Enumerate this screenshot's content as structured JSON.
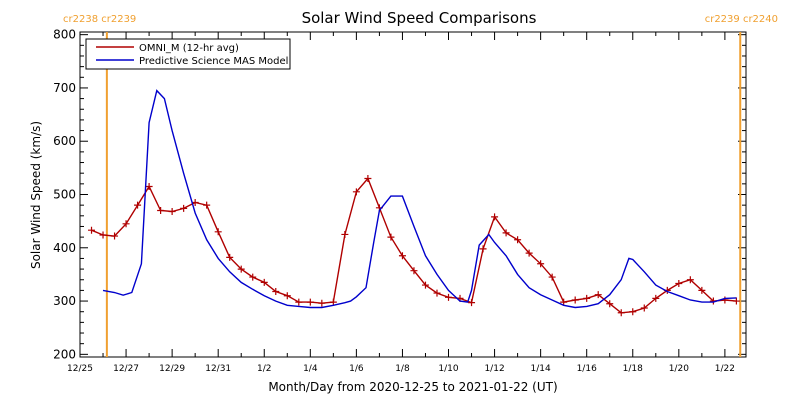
{
  "chart_data": {
    "type": "line",
    "title": "Solar Wind Speed Comparisons",
    "xlabel": "Month/Day from 2020-12-25 to 2021-01-22 (UT)",
    "ylabel": "Solar Wind Speed (km/s)",
    "xlim": [
      "2020-12-25",
      "2021-01-22T22:00"
    ],
    "ylim": [
      195,
      805
    ],
    "yticks": [
      200,
      300,
      400,
      500,
      600,
      700,
      800
    ],
    "xtick_labels": [
      "12/25",
      "12/27",
      "12/29",
      "12/31",
      "1/2",
      "1/4",
      "1/6",
      "1/8",
      "1/10",
      "1/12",
      "1/14",
      "1/16",
      "1/18",
      "1/20",
      "1/22"
    ],
    "xtick_dates": [
      "2020-12-25",
      "2020-12-27",
      "2020-12-29",
      "2020-12-31",
      "2021-01-02",
      "2021-01-04",
      "2021-01-06",
      "2021-01-08",
      "2021-01-10",
      "2021-01-12",
      "2021-01-14",
      "2021-01-16",
      "2021-01-18",
      "2021-01-20",
      "2021-01-22"
    ],
    "legend_position": "top-left",
    "carrington_lines": [
      {
        "date": "2020-12-26T04:00",
        "label": "cr2238 cr2239",
        "label_side": "left"
      },
      {
        "date": "2021-01-22T16:00",
        "label": "cr2239 cr2240",
        "label_side": "right"
      }
    ],
    "series": [
      {
        "name": "OMNI_M (12-hr avg)",
        "color": "#b00000",
        "markers": true,
        "x": [
          "2020-12-25T12:00",
          "2020-12-26T00:00",
          "2020-12-26T12:00",
          "2020-12-27T00:00",
          "2020-12-27T12:00",
          "2020-12-28T00:00",
          "2020-12-28T12:00",
          "2020-12-29T00:00",
          "2020-12-29T12:00",
          "2020-12-30T00:00",
          "2020-12-30T12:00",
          "2020-12-31T00:00",
          "2020-12-31T12:00",
          "2021-01-01T00:00",
          "2021-01-01T12:00",
          "2021-01-02T00:00",
          "2021-01-02T12:00",
          "2021-01-03T00:00",
          "2021-01-03T12:00",
          "2021-01-04T00:00",
          "2021-01-04T12:00",
          "2021-01-05T00:00",
          "2021-01-05T12:00",
          "2021-01-06T00:00",
          "2021-01-06T12:00",
          "2021-01-07T00:00",
          "2021-01-07T12:00",
          "2021-01-08T00:00",
          "2021-01-08T12:00",
          "2021-01-09T00:00",
          "2021-01-09T12:00",
          "2021-01-10T00:00",
          "2021-01-10T12:00",
          "2021-01-11T00:00",
          "2021-01-11T12:00",
          "2021-01-12T00:00",
          "2021-01-12T12:00",
          "2021-01-13T00:00",
          "2021-01-13T12:00",
          "2021-01-14T00:00",
          "2021-01-14T12:00",
          "2021-01-15T00:00",
          "2021-01-15T12:00",
          "2021-01-16T00:00",
          "2021-01-16T12:00",
          "2021-01-17T00:00",
          "2021-01-17T12:00",
          "2021-01-18T00:00",
          "2021-01-18T12:00",
          "2021-01-19T00:00",
          "2021-01-19T12:00",
          "2021-01-20T00:00",
          "2021-01-20T12:00",
          "2021-01-21T00:00",
          "2021-01-21T12:00",
          "2021-01-22T00:00",
          "2021-01-22T12:00"
        ],
        "y": [
          433,
          424,
          422,
          445,
          480,
          515,
          470,
          468,
          474,
          485,
          480,
          430,
          382,
          360,
          345,
          335,
          318,
          310,
          298,
          298,
          296,
          298,
          425,
          505,
          530,
          475,
          420,
          385,
          357,
          330,
          315,
          307,
          305,
          297,
          398,
          458,
          428,
          415,
          390,
          370,
          345,
          298,
          302,
          305,
          312,
          295,
          278,
          280,
          287,
          305,
          320,
          333,
          340,
          320,
          300,
          302,
          300
        ]
      },
      {
        "name": "Predictive Science MAS Model",
        "color": "#0000cc",
        "markers": false,
        "x": [
          "2020-12-26T00:00",
          "2020-12-26T12:00",
          "2020-12-26T21:00",
          "2020-12-27T06:00",
          "2020-12-27T16:00",
          "2020-12-28T00:00",
          "2020-12-28T08:00",
          "2020-12-28T16:00",
          "2020-12-29T00:00",
          "2020-12-29T12:00",
          "2020-12-30T00:00",
          "2020-12-30T12:00",
          "2020-12-31T00:00",
          "2020-12-31T12:00",
          "2021-01-01T00:00",
          "2021-01-01T12:00",
          "2021-01-02T00:00",
          "2021-01-02T12:00",
          "2021-01-03T00:00",
          "2021-01-03T12:00",
          "2021-01-04T00:00",
          "2021-01-04T12:00",
          "2021-01-05T00:00",
          "2021-01-05T12:00",
          "2021-01-05T18:00",
          "2021-01-06T00:00",
          "2021-01-06T10:00",
          "2021-01-06T18:00",
          "2021-01-07T00:00",
          "2021-01-07T12:00",
          "2021-01-08T00:00",
          "2021-01-08T12:00",
          "2021-01-09T00:00",
          "2021-01-09T12:00",
          "2021-01-10T00:00",
          "2021-01-10T12:00",
          "2021-01-10T20:00",
          "2021-01-11T00:00",
          "2021-01-11T08:00",
          "2021-01-11T18:00",
          "2021-01-12T00:00",
          "2021-01-12T12:00",
          "2021-01-13T00:00",
          "2021-01-13T12:00",
          "2021-01-14T00:00",
          "2021-01-14T12:00",
          "2021-01-15T00:00",
          "2021-01-15T12:00",
          "2021-01-16T00:00",
          "2021-01-16T12:00",
          "2021-01-17T00:00",
          "2021-01-17T12:00",
          "2021-01-17T20:00",
          "2021-01-18T00:00",
          "2021-01-18T12:00",
          "2021-01-19T00:00",
          "2021-01-19T12:00",
          "2021-01-20T00:00",
          "2021-01-20T12:00",
          "2021-01-21T00:00",
          "2021-01-21T12:00",
          "2021-01-22T00:00",
          "2021-01-22T12:00"
        ],
        "y": [
          320,
          316,
          311,
          316,
          370,
          635,
          695,
          680,
          620,
          540,
          465,
          415,
          380,
          355,
          335,
          322,
          310,
          300,
          292,
          290,
          288,
          288,
          292,
          297,
          300,
          308,
          325,
          410,
          470,
          497,
          497,
          440,
          385,
          350,
          320,
          300,
          298,
          320,
          405,
          425,
          410,
          385,
          350,
          325,
          312,
          302,
          292,
          288,
          290,
          295,
          312,
          340,
          380,
          378,
          355,
          330,
          318,
          310,
          302,
          298,
          298,
          305,
          306
        ]
      }
    ]
  }
}
